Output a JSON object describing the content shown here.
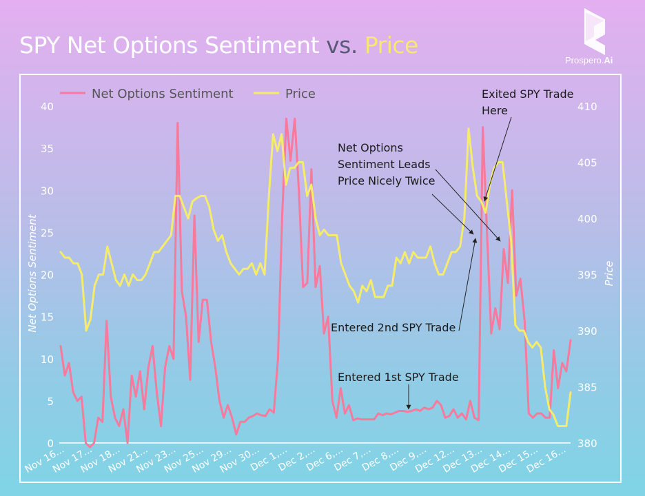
{
  "header": {
    "title_main": "SPY Net Options Sentiment",
    "title_vs": "vs.",
    "title_price": "Price",
    "brand_name": "Prospero.",
    "brand_suffix": "Ai"
  },
  "colors": {
    "sentiment": "#f7799c",
    "price": "#f6ec6c",
    "accent_price_title": "#f6e872"
  },
  "chart_data": {
    "type": "line",
    "title": "SPY Net Options Sentiment vs. Price",
    "ylabel": "Net Options Sentiment",
    "y2label": "Price",
    "ylim": [
      0,
      40
    ],
    "y2lim": [
      380,
      410
    ],
    "yticks": [
      0,
      5,
      10,
      15,
      20,
      25,
      30,
      35,
      40
    ],
    "y2ticks": [
      380,
      385,
      390,
      395,
      400,
      405,
      410
    ],
    "grid": false,
    "legend_position": "top-left",
    "x_tick_labels": [
      "Nov 16...",
      "Nov 17...",
      "Nov 18...",
      "Nov 21...",
      "Nov 23...",
      "Nov 25...",
      "Nov 29...",
      "Nov 30...",
      "Dec 1,...",
      "Dec 2,...",
      "Dec 6,...",
      "Dec 7,...",
      "Dec 8,...",
      "Dec 9,...",
      "Dec 12...",
      "Dec 13...",
      "Dec 14...",
      "Dec 15...",
      "Dec 16..."
    ],
    "series": [
      {
        "name": "Net Options Sentiment",
        "axis": "left",
        "color": "#f7799c",
        "values": [
          11.5,
          8,
          9.5,
          6,
          5,
          5.5,
          0,
          -0.5,
          0,
          3,
          2.5,
          14.5,
          5.5,
          3,
          2,
          4,
          0,
          8,
          5.5,
          8.5,
          4,
          9,
          11.5,
          6,
          2,
          9,
          11.5,
          10,
          38,
          18,
          15,
          7.5,
          27,
          12,
          17,
          17,
          12,
          9,
          5,
          3,
          4.5,
          3,
          1,
          2.5,
          2.5,
          3,
          3.2,
          3.5,
          3.3,
          3.2,
          4,
          3.6,
          10,
          27,
          38.5,
          33.5,
          38.5,
          30,
          18.5,
          19,
          32.5,
          18.5,
          21,
          13,
          15,
          5,
          3,
          6.5,
          3.5,
          4.5,
          2.7,
          2.9,
          2.8,
          2.8,
          2.8,
          2.8,
          3.5,
          3.3,
          3.5,
          3.4,
          3.6,
          3.8,
          3.8,
          3.7,
          3.8,
          4,
          3.8,
          4.2,
          4,
          4.2,
          5,
          4.5,
          3,
          3.2,
          4,
          3,
          3.5,
          2.8,
          5,
          3,
          2.7,
          37.5,
          25,
          13,
          16,
          13.5,
          23,
          19,
          30,
          17.5,
          19.5,
          14.5,
          3.5,
          3,
          3.5,
          3.5,
          3,
          3,
          11,
          6.5,
          9.5,
          8.5,
          12.2
        ]
      },
      {
        "name": "Price",
        "axis": "right",
        "color": "#f6ec6c",
        "values": [
          397,
          396.5,
          396.5,
          396,
          396,
          395,
          390,
          391,
          394,
          395,
          395,
          397.5,
          396,
          394.5,
          394,
          395,
          394,
          395,
          394.5,
          394.5,
          395,
          396,
          397,
          397,
          397.5,
          398,
          398.5,
          402,
          402,
          401,
          400,
          401.5,
          401.8,
          402,
          402,
          401,
          399,
          398,
          398.5,
          397,
          396,
          395.5,
          395,
          395.5,
          395.5,
          396,
          395,
          396,
          395,
          402,
          407.5,
          406,
          407.5,
          403,
          404.5,
          404.5,
          405,
          405,
          402,
          403,
          400,
          398.5,
          399,
          398.5,
          398.5,
          398.5,
          396,
          395,
          394,
          393.5,
          392.5,
          394,
          393.5,
          394.5,
          393,
          393,
          393,
          394,
          394,
          396.5,
          396,
          397,
          396,
          397,
          396.5,
          396.5,
          396.5,
          397.5,
          396,
          395,
          395,
          396,
          397,
          397,
          397.5,
          400,
          408,
          404.5,
          402,
          401.5,
          400.5,
          403,
          404.5,
          405,
          405,
          401.5,
          398,
          390.5,
          390,
          390,
          389,
          388.5,
          389,
          388.5,
          385,
          383,
          382.5,
          381.5,
          381.5,
          381.5,
          384.5
        ]
      }
    ]
  },
  "annotations": {
    "exited": [
      "Exited SPY Trade",
      "Here"
    ],
    "leads": [
      "Net Options",
      "Sentiment Leads",
      "Price Nicely Twice"
    ],
    "entered_2nd": "Entered 2nd SPY Trade",
    "entered_1st": "Entered 1st SPY Trade"
  }
}
